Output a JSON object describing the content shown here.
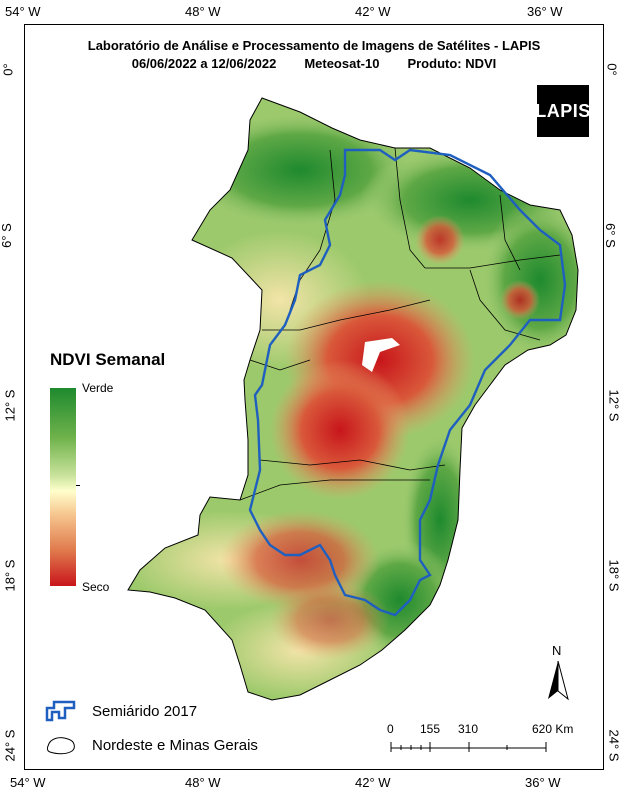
{
  "title": {
    "line1": "Laboratório de Análise e Processamento de Imagens de Satélites - LAPIS",
    "period": "06/06/2022  a  12/06/2022",
    "satellite": "Meteosat-10",
    "product": "Produto: NDVI"
  },
  "logo": {
    "text": "LAPIS"
  },
  "axes": {
    "top_ticks": [
      "54° W",
      "48° W",
      "42° W",
      "36° W"
    ],
    "bottom_ticks": [
      "54° W",
      "48° W",
      "42° W",
      "36° W"
    ],
    "left_ticks": [
      "0°",
      "6° S",
      "12° S",
      "18° S",
      "24° S"
    ],
    "right_ticks": [
      "0°",
      "6° S",
      "12° S",
      "18° S",
      "24° S"
    ]
  },
  "legend": {
    "title": "NDVI Semanal",
    "high_label": "Verde",
    "low_label": "Seco",
    "colors": [
      "#1e8a2e",
      "#6fb24b",
      "#c8e29b",
      "#ffffcc",
      "#f6c58e",
      "#e07a4d",
      "#c8151b"
    ]
  },
  "layers": {
    "semiarid": {
      "label": "Semiárido 2017",
      "color": "#1f5fbf"
    },
    "region": {
      "label": "Nordeste e Minas Gerais",
      "color": "#000000"
    }
  },
  "scalebar": {
    "labels": [
      "0",
      "155",
      "310",
      "620 Km"
    ]
  },
  "north_arrow": {
    "label": "N"
  }
}
